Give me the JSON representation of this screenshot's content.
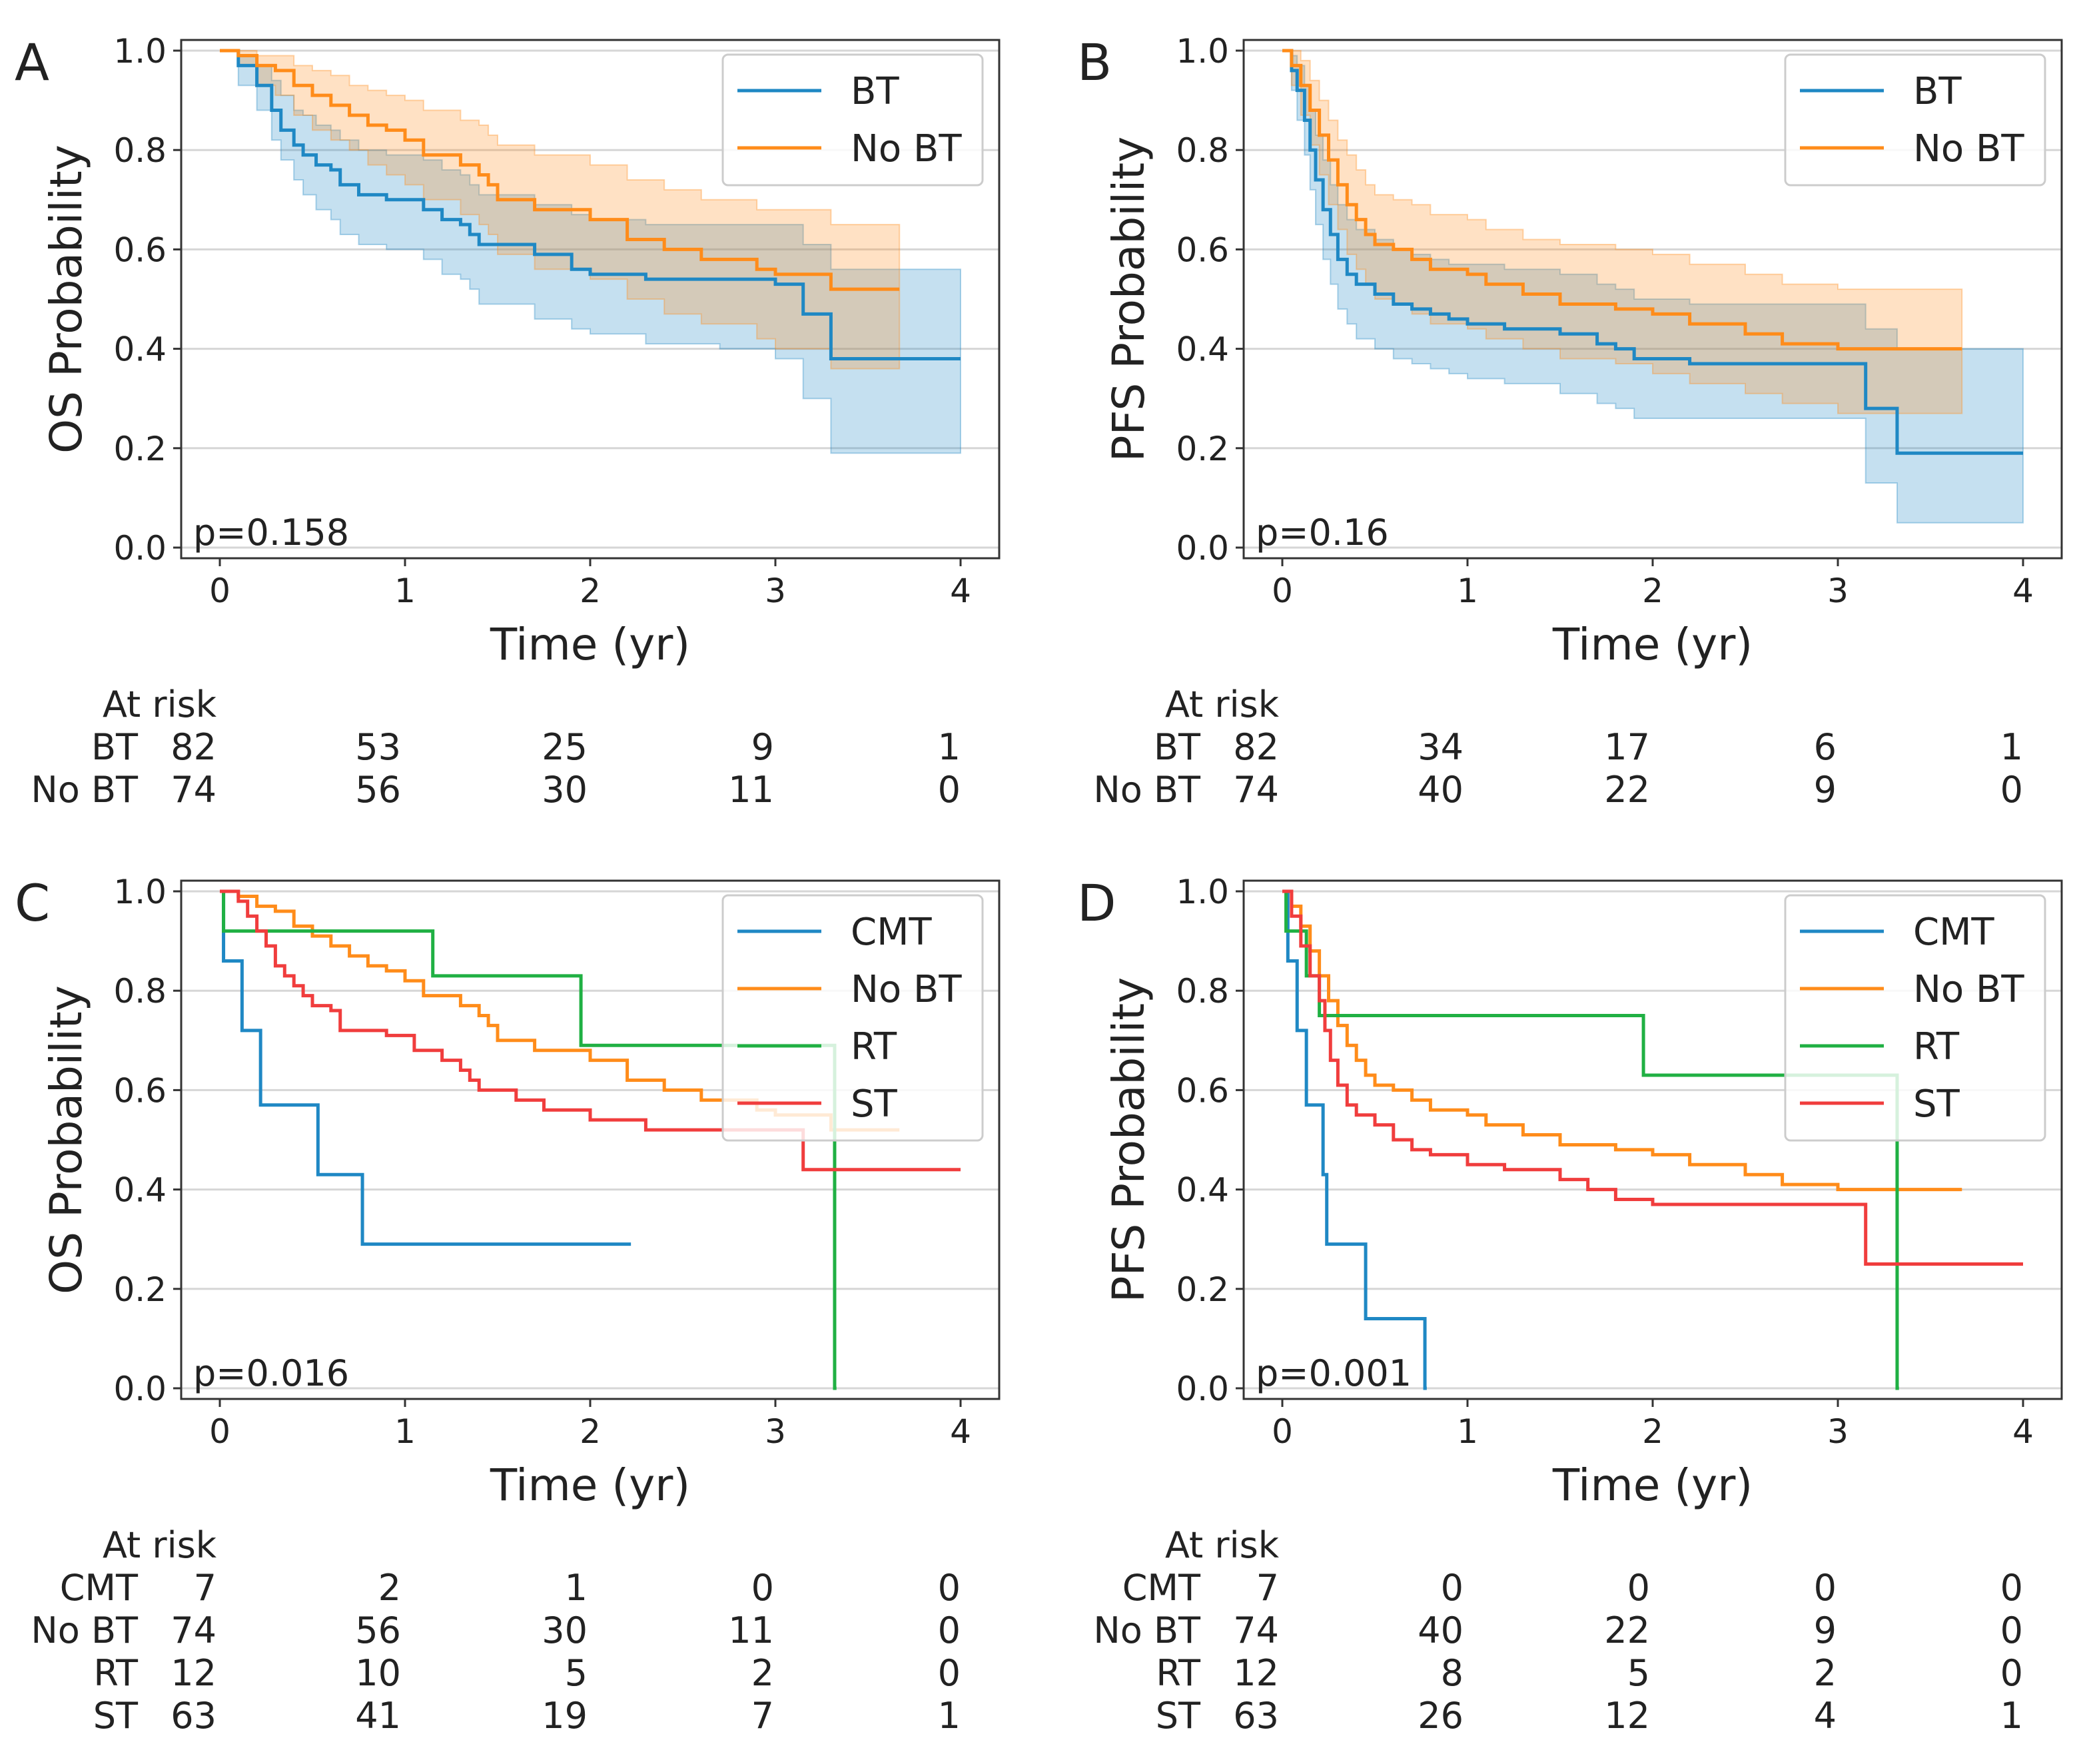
{
  "colors": {
    "BT": "#1f88c4",
    "No BT": "#ff8c1a",
    "CMT": "#1f88c4",
    "RT": "#20b043",
    "ST": "#f03d3d"
  },
  "chart_data": [
    {
      "type": "line",
      "panel": "A",
      "xlabel": "Time (yr)",
      "ylabel": "OS Probability",
      "xlim": [
        0,
        4
      ],
      "ylim": [
        0,
        1
      ],
      "xticks": [
        "0",
        "1",
        "2",
        "3",
        "4"
      ],
      "yticks": [
        "0.0",
        "0.2",
        "0.4",
        "0.6",
        "0.8",
        "1.0"
      ],
      "grid": "horizontal",
      "legend": "top-right",
      "p_value": "p=0.158",
      "series": [
        {
          "name": "BT",
          "ci": true,
          "x": [
            0,
            0.1,
            0.2,
            0.28,
            0.33,
            0.4,
            0.45,
            0.52,
            0.6,
            0.65,
            0.75,
            0.9,
            1.1,
            1.2,
            1.3,
            1.35,
            1.4,
            1.7,
            1.9,
            2.0,
            2.3,
            2.7,
            3.0,
            3.15,
            3.3,
            4.0
          ],
          "y": [
            1.0,
            0.97,
            0.93,
            0.88,
            0.84,
            0.81,
            0.79,
            0.77,
            0.76,
            0.73,
            0.71,
            0.7,
            0.68,
            0.66,
            0.65,
            0.63,
            0.61,
            0.59,
            0.56,
            0.55,
            0.54,
            0.54,
            0.53,
            0.47,
            0.38,
            0.38
          ],
          "lower": [
            1.0,
            0.93,
            0.88,
            0.82,
            0.78,
            0.74,
            0.71,
            0.68,
            0.66,
            0.63,
            0.61,
            0.6,
            0.58,
            0.55,
            0.54,
            0.52,
            0.49,
            0.46,
            0.44,
            0.43,
            0.41,
            0.4,
            0.38,
            0.3,
            0.19,
            0.19
          ],
          "upper": [
            1.0,
            0.99,
            0.97,
            0.94,
            0.91,
            0.88,
            0.87,
            0.85,
            0.84,
            0.82,
            0.8,
            0.79,
            0.78,
            0.76,
            0.75,
            0.73,
            0.71,
            0.69,
            0.67,
            0.66,
            0.65,
            0.65,
            0.65,
            0.61,
            0.56,
            0.56
          ]
        },
        {
          "name": "No BT",
          "ci": true,
          "x": [
            0,
            0.1,
            0.2,
            0.3,
            0.4,
            0.5,
            0.6,
            0.7,
            0.8,
            0.9,
            1.0,
            1.1,
            1.3,
            1.4,
            1.45,
            1.5,
            1.7,
            2.0,
            2.2,
            2.4,
            2.6,
            2.9,
            3.0,
            3.3,
            3.67
          ],
          "y": [
            1.0,
            0.99,
            0.97,
            0.96,
            0.93,
            0.91,
            0.89,
            0.87,
            0.85,
            0.84,
            0.82,
            0.79,
            0.77,
            0.75,
            0.73,
            0.7,
            0.68,
            0.66,
            0.62,
            0.6,
            0.58,
            0.56,
            0.55,
            0.52,
            0.52
          ],
          "lower": [
            1.0,
            0.97,
            0.93,
            0.91,
            0.87,
            0.84,
            0.82,
            0.8,
            0.77,
            0.75,
            0.73,
            0.7,
            0.67,
            0.65,
            0.63,
            0.59,
            0.56,
            0.54,
            0.5,
            0.47,
            0.45,
            0.42,
            0.4,
            0.36,
            0.36
          ],
          "upper": [
            1.0,
            1.0,
            0.99,
            0.99,
            0.97,
            0.96,
            0.95,
            0.93,
            0.92,
            0.91,
            0.9,
            0.88,
            0.86,
            0.85,
            0.83,
            0.81,
            0.79,
            0.77,
            0.74,
            0.72,
            0.7,
            0.68,
            0.68,
            0.65,
            0.65
          ]
        }
      ],
      "at_risk": {
        "label": "At risk",
        "rows": [
          {
            "name": "BT",
            "counts": [
              "82",
              "53",
              "25",
              "9",
              "1"
            ]
          },
          {
            "name": "No BT",
            "counts": [
              "74",
              "56",
              "30",
              "11",
              "0"
            ]
          }
        ]
      }
    },
    {
      "type": "line",
      "panel": "B",
      "xlabel": "Time (yr)",
      "ylabel": "PFS Probability",
      "xlim": [
        0,
        4
      ],
      "ylim": [
        0,
        1
      ],
      "xticks": [
        "0",
        "1",
        "2",
        "3",
        "4"
      ],
      "yticks": [
        "0.0",
        "0.2",
        "0.4",
        "0.6",
        "0.8",
        "1.0"
      ],
      "grid": "horizontal",
      "legend": "top-right",
      "p_value": "p=0.16",
      "series": [
        {
          "name": "BT",
          "ci": true,
          "x": [
            0,
            0.05,
            0.08,
            0.12,
            0.15,
            0.18,
            0.22,
            0.26,
            0.3,
            0.35,
            0.4,
            0.5,
            0.6,
            0.7,
            0.8,
            0.9,
            1.0,
            1.2,
            1.5,
            1.7,
            1.8,
            1.9,
            2.2,
            2.5,
            3.0,
            3.15,
            3.32,
            4.0
          ],
          "y": [
            1.0,
            0.96,
            0.92,
            0.86,
            0.8,
            0.74,
            0.68,
            0.63,
            0.58,
            0.55,
            0.53,
            0.51,
            0.49,
            0.48,
            0.47,
            0.46,
            0.45,
            0.44,
            0.43,
            0.41,
            0.4,
            0.38,
            0.37,
            0.37,
            0.37,
            0.28,
            0.19,
            0.19
          ],
          "lower": [
            1.0,
            0.92,
            0.86,
            0.79,
            0.72,
            0.65,
            0.58,
            0.53,
            0.48,
            0.45,
            0.42,
            0.4,
            0.38,
            0.37,
            0.36,
            0.35,
            0.34,
            0.33,
            0.31,
            0.29,
            0.28,
            0.26,
            0.26,
            0.26,
            0.26,
            0.13,
            0.05,
            0.05
          ],
          "upper": [
            1.0,
            0.99,
            0.97,
            0.93,
            0.88,
            0.83,
            0.78,
            0.73,
            0.69,
            0.66,
            0.64,
            0.62,
            0.6,
            0.59,
            0.58,
            0.57,
            0.57,
            0.56,
            0.55,
            0.53,
            0.52,
            0.5,
            0.49,
            0.49,
            0.49,
            0.44,
            0.4,
            0.4
          ]
        },
        {
          "name": "No BT",
          "ci": true,
          "x": [
            0,
            0.05,
            0.1,
            0.15,
            0.2,
            0.25,
            0.3,
            0.35,
            0.4,
            0.45,
            0.5,
            0.6,
            0.7,
            0.8,
            1.0,
            1.1,
            1.3,
            1.5,
            1.8,
            2.0,
            2.2,
            2.5,
            2.7,
            3.0,
            3.67
          ],
          "y": [
            1.0,
            0.97,
            0.93,
            0.88,
            0.83,
            0.78,
            0.73,
            0.69,
            0.66,
            0.63,
            0.61,
            0.6,
            0.58,
            0.56,
            0.55,
            0.53,
            0.51,
            0.49,
            0.48,
            0.47,
            0.45,
            0.43,
            0.41,
            0.4,
            0.4
          ],
          "lower": [
            1.0,
            0.93,
            0.87,
            0.81,
            0.75,
            0.69,
            0.64,
            0.59,
            0.56,
            0.53,
            0.5,
            0.49,
            0.47,
            0.45,
            0.44,
            0.42,
            0.4,
            0.38,
            0.37,
            0.35,
            0.33,
            0.31,
            0.29,
            0.27,
            0.27
          ],
          "upper": [
            1.0,
            1.0,
            0.98,
            0.94,
            0.9,
            0.86,
            0.82,
            0.79,
            0.76,
            0.73,
            0.71,
            0.7,
            0.69,
            0.67,
            0.66,
            0.64,
            0.62,
            0.61,
            0.6,
            0.59,
            0.57,
            0.55,
            0.53,
            0.52,
            0.52
          ]
        }
      ],
      "at_risk": {
        "label": "At risk",
        "rows": [
          {
            "name": "BT",
            "counts": [
              "82",
              "34",
              "17",
              "6",
              "1"
            ]
          },
          {
            "name": "No BT",
            "counts": [
              "74",
              "40",
              "22",
              "9",
              "0"
            ]
          }
        ]
      }
    },
    {
      "type": "line",
      "panel": "C",
      "xlabel": "Time (yr)",
      "ylabel": "OS Probability",
      "xlim": [
        0,
        4
      ],
      "ylim": [
        0,
        1
      ],
      "xticks": [
        "0",
        "1",
        "2",
        "3",
        "4"
      ],
      "yticks": [
        "0.0",
        "0.2",
        "0.4",
        "0.6",
        "0.8",
        "1.0"
      ],
      "grid": "horizontal",
      "legend": "top-right",
      "p_value": "p=0.016",
      "series": [
        {
          "name": "CMT",
          "x": [
            0,
            0.02,
            0.12,
            0.22,
            0.53,
            0.77,
            2.22
          ],
          "y": [
            1.0,
            0.86,
            0.72,
            0.57,
            0.43,
            0.29,
            0.29
          ]
        },
        {
          "name": "No BT",
          "x": [
            0,
            0.1,
            0.2,
            0.3,
            0.4,
            0.5,
            0.6,
            0.7,
            0.8,
            0.9,
            1.0,
            1.1,
            1.3,
            1.4,
            1.45,
            1.5,
            1.7,
            2.0,
            2.2,
            2.4,
            2.6,
            2.9,
            3.0,
            3.3,
            3.67
          ],
          "y": [
            1.0,
            0.99,
            0.97,
            0.96,
            0.93,
            0.91,
            0.89,
            0.87,
            0.85,
            0.84,
            0.82,
            0.79,
            0.77,
            0.75,
            0.73,
            0.7,
            0.68,
            0.66,
            0.62,
            0.6,
            0.58,
            0.56,
            0.55,
            0.52,
            0.52
          ]
        },
        {
          "name": "RT",
          "x": [
            0,
            0.02,
            1.15,
            1.95,
            3.32,
            3.33
          ],
          "y": [
            1.0,
            0.92,
            0.83,
            0.69,
            0.0,
            0.0
          ]
        },
        {
          "name": "ST",
          "x": [
            0,
            0.1,
            0.15,
            0.2,
            0.25,
            0.3,
            0.35,
            0.4,
            0.45,
            0.5,
            0.6,
            0.65,
            0.9,
            1.05,
            1.2,
            1.3,
            1.35,
            1.4,
            1.6,
            1.75,
            2.0,
            2.3,
            3.0,
            3.15,
            4.0
          ],
          "y": [
            1.0,
            0.98,
            0.95,
            0.92,
            0.89,
            0.85,
            0.83,
            0.81,
            0.79,
            0.77,
            0.76,
            0.72,
            0.71,
            0.68,
            0.66,
            0.64,
            0.62,
            0.6,
            0.58,
            0.56,
            0.54,
            0.52,
            0.52,
            0.44,
            0.44
          ]
        }
      ],
      "at_risk": {
        "label": "At risk",
        "rows": [
          {
            "name": "CMT",
            "counts": [
              "7",
              "2",
              "1",
              "0",
              "0"
            ]
          },
          {
            "name": "No BT",
            "counts": [
              "74",
              "56",
              "30",
              "11",
              "0"
            ]
          },
          {
            "name": "RT",
            "counts": [
              "12",
              "10",
              "5",
              "2",
              "0"
            ]
          },
          {
            "name": "ST",
            "counts": [
              "63",
              "41",
              "19",
              "7",
              "1"
            ]
          }
        ]
      }
    },
    {
      "type": "line",
      "panel": "D",
      "xlabel": "Time (yr)",
      "ylabel": "PFS Probability",
      "xlim": [
        0,
        4
      ],
      "ylim": [
        0,
        1
      ],
      "xticks": [
        "0",
        "1",
        "2",
        "3",
        "4"
      ],
      "yticks": [
        "0.0",
        "0.2",
        "0.4",
        "0.6",
        "0.8",
        "1.0"
      ],
      "grid": "horizontal",
      "legend": "top-right",
      "p_value": "p=0.001",
      "series": [
        {
          "name": "CMT",
          "x": [
            0,
            0.03,
            0.08,
            0.13,
            0.22,
            0.24,
            0.45,
            0.77,
            0.78
          ],
          "y": [
            1.0,
            0.86,
            0.72,
            0.57,
            0.43,
            0.29,
            0.14,
            0.0,
            0.0
          ]
        },
        {
          "name": "No BT",
          "x": [
            0,
            0.05,
            0.1,
            0.15,
            0.2,
            0.25,
            0.3,
            0.35,
            0.4,
            0.45,
            0.5,
            0.6,
            0.7,
            0.8,
            1.0,
            1.1,
            1.3,
            1.5,
            1.8,
            2.0,
            2.2,
            2.5,
            2.7,
            3.0,
            3.67
          ],
          "y": [
            1.0,
            0.97,
            0.93,
            0.88,
            0.83,
            0.78,
            0.73,
            0.69,
            0.66,
            0.63,
            0.61,
            0.6,
            0.58,
            0.56,
            0.55,
            0.53,
            0.51,
            0.49,
            0.48,
            0.47,
            0.45,
            0.43,
            0.41,
            0.4,
            0.4
          ]
        },
        {
          "name": "RT",
          "x": [
            0,
            0.02,
            0.13,
            0.2,
            1.95,
            3.32,
            3.33
          ],
          "y": [
            1.0,
            0.92,
            0.83,
            0.75,
            0.63,
            0.0,
            0.0
          ]
        },
        {
          "name": "ST",
          "x": [
            0,
            0.05,
            0.1,
            0.15,
            0.2,
            0.23,
            0.26,
            0.3,
            0.35,
            0.4,
            0.5,
            0.6,
            0.7,
            0.8,
            1.0,
            1.2,
            1.5,
            1.65,
            1.8,
            2.0,
            3.0,
            3.15,
            4.0
          ],
          "y": [
            1.0,
            0.95,
            0.89,
            0.83,
            0.78,
            0.72,
            0.66,
            0.61,
            0.57,
            0.55,
            0.53,
            0.5,
            0.48,
            0.47,
            0.45,
            0.44,
            0.42,
            0.4,
            0.38,
            0.37,
            0.37,
            0.25,
            0.25
          ]
        }
      ],
      "at_risk": {
        "label": "At risk",
        "rows": [
          {
            "name": "CMT",
            "counts": [
              "7",
              "0",
              "0",
              "0",
              "0"
            ]
          },
          {
            "name": "No BT",
            "counts": [
              "74",
              "40",
              "22",
              "9",
              "0"
            ]
          },
          {
            "name": "RT",
            "counts": [
              "12",
              "8",
              "5",
              "2",
              "0"
            ]
          },
          {
            "name": "ST",
            "counts": [
              "63",
              "26",
              "12",
              "4",
              "1"
            ]
          }
        ]
      }
    }
  ]
}
